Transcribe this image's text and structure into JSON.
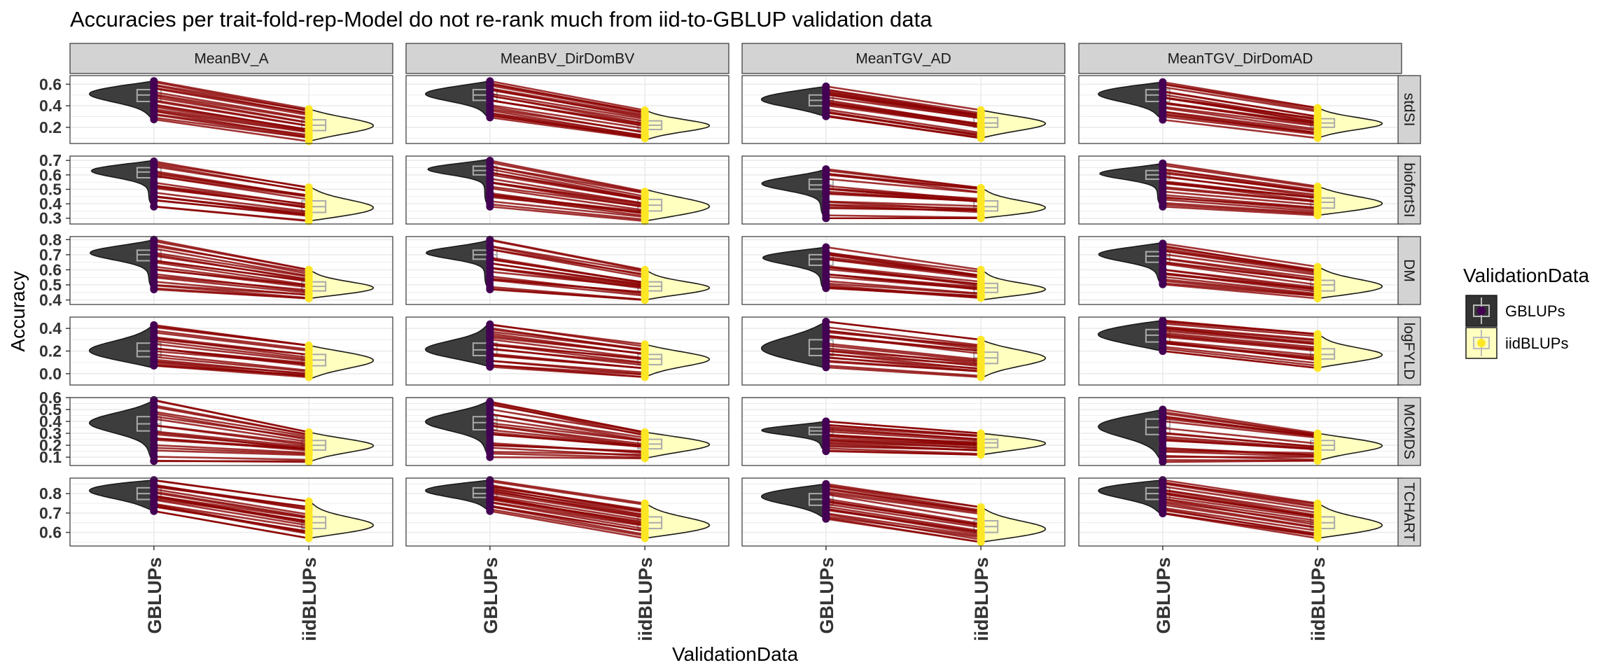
{
  "chart_data": {
    "type": "violin",
    "title": "Accuracies per trait-fold-rep-Model do not re-rank much from iid-to-GBLUP validation data",
    "xlabel": "ValidationData",
    "ylabel": "Accuracy",
    "categories": [
      "GBLUPs",
      "iidBLUPs"
    ],
    "columns": [
      "MeanBV_A",
      "MeanBV_DirDomBV",
      "MeanTGV_AD",
      "MeanTGV_DirDomAD"
    ],
    "rows": [
      {
        "name": "stdSI",
        "ylim": [
          0.05,
          0.68
        ],
        "ticks": [
          0.2,
          0.4,
          0.6
        ],
        "tick_labels": [
          "0.2",
          "0.4",
          "0.6"
        ]
      },
      {
        "name": "biofortSI",
        "ylim": [
          0.26,
          0.73
        ],
        "ticks": [
          0.3,
          0.4,
          0.5,
          0.6,
          0.7
        ],
        "tick_labels": [
          "0.3",
          "0.4",
          "0.5",
          "0.6",
          "0.7"
        ]
      },
      {
        "name": "DM",
        "ylim": [
          0.37,
          0.82
        ],
        "ticks": [
          0.4,
          0.5,
          0.6,
          0.7,
          0.8
        ],
        "tick_labels": [
          "0.4",
          "0.5",
          "0.6",
          "0.7",
          "0.8"
        ]
      },
      {
        "name": "logFYLD",
        "ylim": [
          -0.1,
          0.5
        ],
        "ticks": [
          0.0,
          0.2,
          0.4
        ],
        "tick_labels": [
          "0.0",
          "0.2",
          "0.4"
        ]
      },
      {
        "name": "MCMDS",
        "ylim": [
          0.03,
          0.6
        ],
        "ticks": [
          0.1,
          0.2,
          0.3,
          0.4,
          0.5,
          0.6
        ],
        "tick_labels": [
          "0.1",
          "0.2",
          "0.3",
          "0.4",
          "0.5",
          "0.6"
        ]
      },
      {
        "name": "TCHART",
        "ylim": [
          0.53,
          0.88
        ],
        "ticks": [
          0.6,
          0.7,
          0.8
        ],
        "tick_labels": [
          "0.6",
          "0.7",
          "0.8"
        ]
      }
    ],
    "panels": [
      [
        {
          "g": {
            "min": 0.27,
            "q1": 0.44,
            "med": 0.5,
            "q3": 0.55,
            "max": 0.63
          },
          "i": {
            "min": 0.07,
            "q1": 0.17,
            "med": 0.22,
            "q3": 0.27,
            "max": 0.37
          }
        },
        {
          "g": {
            "min": 0.38,
            "q1": 0.58,
            "med": 0.62,
            "q3": 0.65,
            "max": 0.7
          },
          "i": {
            "min": 0.28,
            "q1": 0.34,
            "med": 0.38,
            "q3": 0.42,
            "max": 0.52
          }
        },
        {
          "g": {
            "min": 0.47,
            "q1": 0.66,
            "med": 0.7,
            "q3": 0.73,
            "max": 0.8
          },
          "i": {
            "min": 0.41,
            "q1": 0.46,
            "med": 0.49,
            "q3": 0.52,
            "max": 0.6
          }
        },
        {
          "g": {
            "min": 0.05,
            "q1": 0.15,
            "med": 0.2,
            "q3": 0.27,
            "max": 0.43
          },
          "i": {
            "min": -0.05,
            "q1": 0.07,
            "med": 0.12,
            "q3": 0.17,
            "max": 0.25
          }
        },
        {
          "g": {
            "min": 0.06,
            "q1": 0.32,
            "med": 0.38,
            "q3": 0.44,
            "max": 0.58
          },
          "i": {
            "min": 0.06,
            "q1": 0.16,
            "med": 0.2,
            "q3": 0.24,
            "max": 0.31
          }
        },
        {
          "g": {
            "min": 0.71,
            "q1": 0.77,
            "med": 0.8,
            "q3": 0.83,
            "max": 0.87
          },
          "i": {
            "min": 0.57,
            "q1": 0.62,
            "med": 0.65,
            "q3": 0.68,
            "max": 0.76
          }
        }
      ],
      [
        {
          "g": {
            "min": 0.28,
            "q1": 0.45,
            "med": 0.5,
            "q3": 0.55,
            "max": 0.63
          },
          "i": {
            "min": 0.08,
            "q1": 0.18,
            "med": 0.22,
            "q3": 0.26,
            "max": 0.36
          }
        },
        {
          "g": {
            "min": 0.38,
            "q1": 0.6,
            "med": 0.63,
            "q3": 0.66,
            "max": 0.71
          },
          "i": {
            "min": 0.28,
            "q1": 0.35,
            "med": 0.39,
            "q3": 0.43,
            "max": 0.5
          }
        },
        {
          "g": {
            "min": 0.47,
            "q1": 0.67,
            "med": 0.7,
            "q3": 0.73,
            "max": 0.8
          },
          "i": {
            "min": 0.4,
            "q1": 0.46,
            "med": 0.49,
            "q3": 0.52,
            "max": 0.6
          }
        },
        {
          "g": {
            "min": 0.06,
            "q1": 0.16,
            "med": 0.21,
            "q3": 0.27,
            "max": 0.45
          },
          "i": {
            "min": -0.03,
            "q1": 0.08,
            "med": 0.13,
            "q3": 0.17,
            "max": 0.26
          }
        },
        {
          "g": {
            "min": 0.1,
            "q1": 0.33,
            "med": 0.39,
            "q3": 0.44,
            "max": 0.58
          },
          "i": {
            "min": 0.09,
            "q1": 0.17,
            "med": 0.21,
            "q3": 0.25,
            "max": 0.31
          }
        },
        {
          "g": {
            "min": 0.71,
            "q1": 0.78,
            "med": 0.8,
            "q3": 0.83,
            "max": 0.87
          },
          "i": {
            "min": 0.57,
            "q1": 0.62,
            "med": 0.65,
            "q3": 0.68,
            "max": 0.75
          }
        }
      ],
      [
        {
          "g": {
            "min": 0.3,
            "q1": 0.4,
            "med": 0.45,
            "q3": 0.5,
            "max": 0.58
          },
          "i": {
            "min": 0.1,
            "q1": 0.2,
            "med": 0.24,
            "q3": 0.29,
            "max": 0.36
          }
        },
        {
          "g": {
            "min": 0.3,
            "q1": 0.5,
            "med": 0.53,
            "q3": 0.57,
            "max": 0.64
          },
          "i": {
            "min": 0.3,
            "q1": 0.35,
            "med": 0.38,
            "q3": 0.42,
            "max": 0.51
          }
        },
        {
          "g": {
            "min": 0.46,
            "q1": 0.63,
            "med": 0.67,
            "q3": 0.7,
            "max": 0.75
          },
          "i": {
            "min": 0.4,
            "q1": 0.45,
            "med": 0.48,
            "q3": 0.51,
            "max": 0.6
          }
        },
        {
          "g": {
            "min": 0.05,
            "q1": 0.16,
            "med": 0.22,
            "q3": 0.3,
            "max": 0.46
          },
          "i": {
            "min": -0.04,
            "q1": 0.09,
            "med": 0.14,
            "q3": 0.19,
            "max": 0.3
          }
        },
        {
          "g": {
            "min": 0.15,
            "q1": 0.29,
            "med": 0.32,
            "q3": 0.35,
            "max": 0.4
          },
          "i": {
            "min": 0.12,
            "q1": 0.18,
            "med": 0.22,
            "q3": 0.25,
            "max": 0.3
          }
        },
        {
          "g": {
            "min": 0.67,
            "q1": 0.74,
            "med": 0.77,
            "q3": 0.8,
            "max": 0.85
          },
          "i": {
            "min": 0.55,
            "q1": 0.6,
            "med": 0.63,
            "q3": 0.66,
            "max": 0.73
          }
        }
      ],
      [
        {
          "g": {
            "min": 0.27,
            "q1": 0.44,
            "med": 0.5,
            "q3": 0.55,
            "max": 0.62
          },
          "i": {
            "min": 0.1,
            "q1": 0.2,
            "med": 0.24,
            "q3": 0.28,
            "max": 0.38
          }
        },
        {
          "g": {
            "min": 0.38,
            "q1": 0.57,
            "med": 0.6,
            "q3": 0.63,
            "max": 0.68
          },
          "i": {
            "min": 0.32,
            "q1": 0.37,
            "med": 0.41,
            "q3": 0.44,
            "max": 0.52
          }
        },
        {
          "g": {
            "min": 0.5,
            "q1": 0.65,
            "med": 0.69,
            "q3": 0.72,
            "max": 0.78
          },
          "i": {
            "min": 0.41,
            "q1": 0.46,
            "med": 0.5,
            "q3": 0.53,
            "max": 0.62
          }
        },
        {
          "g": {
            "min": 0.2,
            "q1": 0.28,
            "med": 0.34,
            "q3": 0.39,
            "max": 0.47
          },
          "i": {
            "min": 0.05,
            "q1": 0.13,
            "med": 0.17,
            "q3": 0.22,
            "max": 0.35
          }
        },
        {
          "g": {
            "min": 0.06,
            "q1": 0.29,
            "med": 0.35,
            "q3": 0.42,
            "max": 0.5
          },
          "i": {
            "min": 0.07,
            "q1": 0.16,
            "med": 0.2,
            "q3": 0.24,
            "max": 0.3
          }
        },
        {
          "g": {
            "min": 0.69,
            "q1": 0.77,
            "med": 0.8,
            "q3": 0.83,
            "max": 0.87
          },
          "i": {
            "min": 0.57,
            "q1": 0.62,
            "med": 0.65,
            "q3": 0.68,
            "max": 0.75
          }
        }
      ]
    ],
    "legend": {
      "title": "ValidationData",
      "position": "right",
      "items": [
        {
          "label": "GBLUPs",
          "fill": "#333333",
          "point": "#440154"
        },
        {
          "label": "iidBLUPs",
          "fill": "#ffffbf",
          "point": "#fde725"
        }
      ]
    },
    "colors": {
      "gblup_fill": "#333333",
      "iid_fill": "#ffffbf",
      "gblup_point": "#440154",
      "iid_point": "#fde725",
      "line": "#8b0000",
      "strip": "#d3d3d3"
    },
    "grid": true
  }
}
